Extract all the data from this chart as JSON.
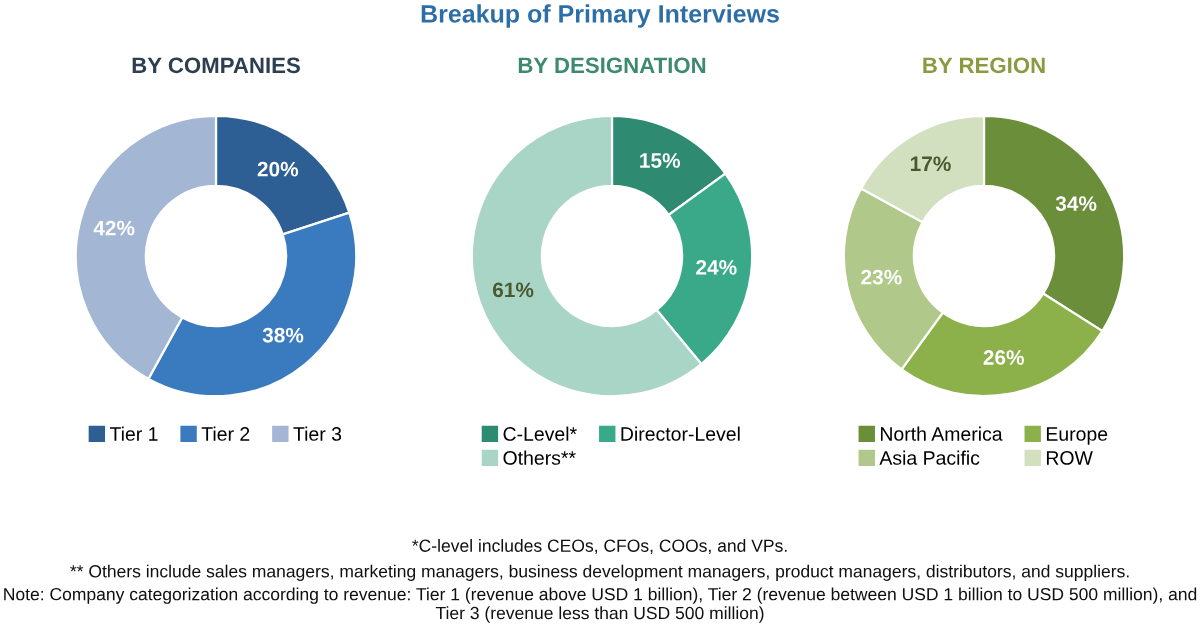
{
  "chart_data": [
    {
      "type": "other",
      "title": "Breakup of Primary Interviews",
      "annotations": [
        "*C-level includes CEOs, CFOs, COOs, and VPs.",
        "** Others include sales managers, marketing managers, business development managers, product managers, distributors, and suppliers.",
        "Note: Company categorization according to revenue: Tier 1 (revenue above USD 1 billion), Tier 2 (revenue between USD 1 billion to USD 500 million), and Tier 3 (revenue less than USD 500 million)"
      ]
    },
    {
      "type": "donut",
      "title": "BY COMPANIES",
      "categories": [
        "Tier 1",
        "Tier 2",
        "Tier 3"
      ],
      "values": [
        20,
        38,
        42
      ],
      "colors": [
        "#2e5f94",
        "#3a7bbf",
        "#a3b6d4"
      ],
      "value_labels": [
        "20%",
        "38%",
        "42%"
      ],
      "legend": "bottom"
    },
    {
      "type": "donut",
      "title": "BY DESIGNATION",
      "categories": [
        "C-Level*",
        "Director-Level",
        "Others**"
      ],
      "values": [
        15,
        24,
        61
      ],
      "colors": [
        "#2e8b72",
        "#3aa98a",
        "#a8d5c5"
      ],
      "value_labels": [
        "15%",
        "24%",
        "61%"
      ],
      "legend": "bottom"
    },
    {
      "type": "donut",
      "title": "BY REGION",
      "categories": [
        "North America",
        "Europe",
        "Asia Pacific",
        "ROW"
      ],
      "values": [
        34,
        26,
        23,
        17
      ],
      "colors": [
        "#6b8e3a",
        "#8cb04a",
        "#b0c98a",
        "#d3e0c0"
      ],
      "value_labels": [
        "34%",
        "26%",
        "23%",
        "17%"
      ],
      "legend": "bottom"
    }
  ]
}
